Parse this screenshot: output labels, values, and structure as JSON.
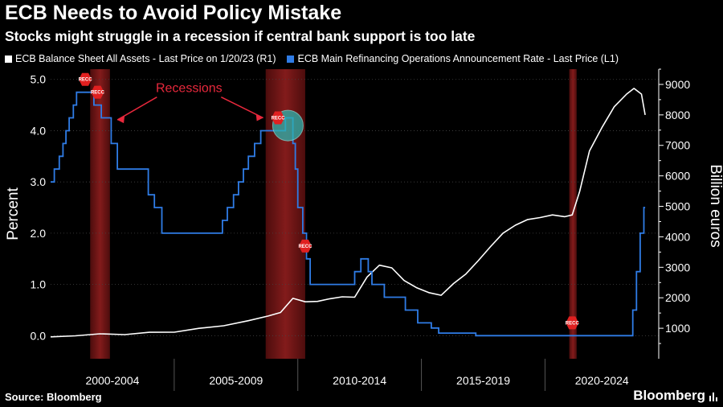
{
  "title": "ECB Needs to Avoid Policy Mistake",
  "subtitle": "Stocks might struggle in a recession if central bank support is too late",
  "footer": {
    "source": "Source: Bloomberg",
    "brand": "Bloomberg"
  },
  "colors": {
    "balance_sheet": "#ffffff",
    "refi_rate": "#2f7ce6",
    "recession": "#8b1a1a",
    "annotation": "#e8283c",
    "marker": "#2bb5b0"
  },
  "chart_data": {
    "type": "line",
    "title": "ECB Needs to Avoid Policy Mistake",
    "subtitle": "Stocks might struggle in a recession if central bank support is too late",
    "series": [
      {
        "name": "ECB Balance Sheet All Assets - Last Price on 1/20/23 (R1)",
        "axis": "right",
        "points": [
          [
            1999.0,
            700
          ],
          [
            2000.0,
            770
          ],
          [
            2001.0,
            800
          ],
          [
            2002.0,
            810
          ],
          [
            2003.0,
            850
          ],
          [
            2004.0,
            890
          ],
          [
            2005.0,
            980
          ],
          [
            2006.0,
            1100
          ],
          [
            2007.0,
            1230
          ],
          [
            2007.8,
            1420
          ],
          [
            2008.3,
            1500
          ],
          [
            2008.8,
            2000
          ],
          [
            2009.3,
            1850
          ],
          [
            2009.8,
            1900
          ],
          [
            2010.3,
            1950
          ],
          [
            2010.8,
            2050
          ],
          [
            2011.3,
            2000
          ],
          [
            2011.8,
            2700
          ],
          [
            2012.3,
            3050
          ],
          [
            2012.8,
            3000
          ],
          [
            2013.3,
            2550
          ],
          [
            2013.8,
            2350
          ],
          [
            2014.3,
            2150
          ],
          [
            2014.8,
            2100
          ],
          [
            2015.3,
            2450
          ],
          [
            2015.8,
            2800
          ],
          [
            2016.3,
            3200
          ],
          [
            2016.8,
            3700
          ],
          [
            2017.3,
            4100
          ],
          [
            2017.8,
            4400
          ],
          [
            2018.3,
            4550
          ],
          [
            2018.8,
            4650
          ],
          [
            2019.3,
            4700
          ],
          [
            2019.8,
            4680
          ],
          [
            2020.1,
            4700
          ],
          [
            2020.4,
            5500
          ],
          [
            2020.8,
            6800
          ],
          [
            2021.3,
            7600
          ],
          [
            2021.8,
            8250
          ],
          [
            2022.3,
            8700
          ],
          [
            2022.6,
            8850
          ],
          [
            2022.9,
            8700
          ],
          [
            2023.05,
            7980
          ]
        ]
      },
      {
        "name": "ECB Main Refinancing Operations Announcement Rate - Last Price (L1)",
        "axis": "left",
        "steps": [
          [
            1999.0,
            3.0
          ],
          [
            1999.15,
            3.25
          ],
          [
            1999.35,
            3.5
          ],
          [
            1999.5,
            3.75
          ],
          [
            1999.62,
            4.0
          ],
          [
            1999.75,
            4.25
          ],
          [
            1999.92,
            4.5
          ],
          [
            2000.05,
            4.75
          ],
          [
            2000.75,
            4.5
          ],
          [
            2001.05,
            4.25
          ],
          [
            2001.45,
            3.75
          ],
          [
            2001.7,
            3.25
          ],
          [
            2002.95,
            2.75
          ],
          [
            2003.2,
            2.5
          ],
          [
            2003.5,
            2.0
          ],
          [
            2005.95,
            2.25
          ],
          [
            2006.15,
            2.5
          ],
          [
            2006.4,
            2.75
          ],
          [
            2006.6,
            3.0
          ],
          [
            2006.8,
            3.25
          ],
          [
            2007.0,
            3.5
          ],
          [
            2007.25,
            3.75
          ],
          [
            2007.5,
            4.0
          ],
          [
            2008.5,
            4.25
          ],
          [
            2008.8,
            3.75
          ],
          [
            2008.9,
            3.25
          ],
          [
            2009.0,
            2.5
          ],
          [
            2009.2,
            2.0
          ],
          [
            2009.35,
            1.5
          ],
          [
            2009.5,
            1.0
          ],
          [
            2011.3,
            1.25
          ],
          [
            2011.55,
            1.5
          ],
          [
            2011.85,
            1.25
          ],
          [
            2012.0,
            1.0
          ],
          [
            2012.5,
            0.75
          ],
          [
            2013.35,
            0.5
          ],
          [
            2013.85,
            0.25
          ],
          [
            2014.4,
            0.15
          ],
          [
            2014.7,
            0.05
          ],
          [
            2016.2,
            0.0
          ],
          [
            2022.55,
            0.5
          ],
          [
            2022.7,
            1.25
          ],
          [
            2022.85,
            2.0
          ],
          [
            2023.0,
            2.5
          ],
          [
            2023.05,
            2.5
          ]
        ]
      }
    ],
    "recessions": [
      [
        2000.6,
        2001.4
      ],
      [
        2007.7,
        2009.3
      ],
      [
        2019.98,
        2020.28
      ]
    ],
    "recc_markers": [
      {
        "x": 2000.4,
        "y": 5.0,
        "label": "RECC"
      },
      {
        "x": 2000.9,
        "y": 4.75,
        "label": "RECC"
      },
      {
        "x": 2008.2,
        "y": 4.25,
        "label": "RECC"
      },
      {
        "x": 2009.3,
        "y": 1.75,
        "label": "RECC"
      },
      {
        "x": 2020.1,
        "y": 0.25,
        "label": "RECC"
      }
    ],
    "circle_marker": {
      "x": 2008.6,
      "y": 4.1
    },
    "annotation": {
      "text": "Recessions",
      "x": 2004.6,
      "y": 4.75
    },
    "left_axis": {
      "label": "Percent",
      "ylim": [
        -0.45,
        5.2
      ],
      "ticks": [
        "0.0",
        "1.0",
        "2.0",
        "3.0",
        "4.0",
        "5.0"
      ]
    },
    "right_axis": {
      "label": "Billion euros",
      "ylim": [
        0,
        9500
      ],
      "ticks": [
        "1000",
        "2000",
        "3000",
        "4000",
        "5000",
        "6000",
        "7000",
        "8000",
        "9000"
      ]
    },
    "xlim": [
      1999.0,
      2023.6
    ],
    "x_categories": [
      "2000-2004",
      "2005-2009",
      "2010-2014",
      "2015-2019",
      "2020-2024"
    ],
    "x_dividers": [
      2004.0,
      2009.0,
      2014.0,
      2019.0
    ]
  }
}
